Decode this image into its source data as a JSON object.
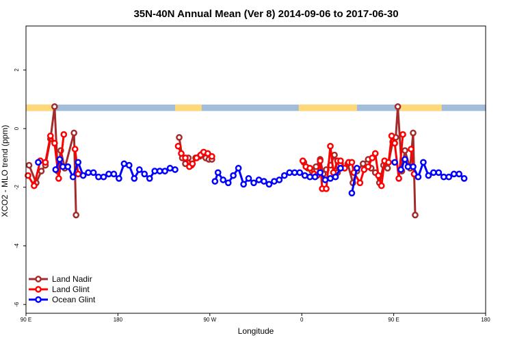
{
  "chart_data": {
    "type": "line",
    "title": "35N-40N Annual Mean (Ver 8)   2014-09-06 to 2017-06-30",
    "xlabel": "Longitude",
    "ylabel": "XCO2 - MLO trend (ppm)",
    "x_unit": "degrees longitude, continuous from 90 E eastward (90 E = 90, 180 = 180, 90 W = 270, 0 = 360, 90 E = 450, 180 = 540)",
    "xlim": [
      90,
      540
    ],
    "ylim": [
      -6.3,
      3.5
    ],
    "xticks": [
      {
        "value": 90,
        "label": "90 E"
      },
      {
        "value": 180,
        "label": "180"
      },
      {
        "value": 270,
        "label": "90 W"
      },
      {
        "value": 360,
        "label": "0"
      },
      {
        "value": 450,
        "label": "90 E"
      },
      {
        "value": 540,
        "label": "180"
      }
    ],
    "yticks": [
      {
        "value": -6,
        "label": "-6"
      },
      {
        "value": -4,
        "label": "-4"
      },
      {
        "value": -2,
        "label": "-2"
      },
      {
        "value": 0,
        "label": "0"
      },
      {
        "value": 2,
        "label": "2"
      }
    ],
    "grid": false,
    "legend_position": "bottom-left",
    "land_mask_band": {
      "y_range": [
        0.6,
        0.82
      ],
      "ocean_color": "#a3bcd9",
      "land_color": "#ffd879",
      "land_segments": [
        [
          90,
          118
        ],
        [
          236,
          262
        ],
        [
          357,
          414
        ],
        [
          456,
          497
        ]
      ]
    },
    "series": [
      {
        "name": "Land Nadir",
        "color": "#a52a2a",
        "points": [
          [
            93,
            -1.25
          ],
          [
            100,
            -1.85
          ],
          [
            105,
            -1.45
          ],
          [
            109,
            -1.25
          ],
          [
            114,
            -0.35
          ],
          [
            118,
            0.75
          ],
          [
            121,
            -1.45
          ],
          [
            124,
            -0.75
          ],
          [
            128,
            -1.35
          ],
          [
            137,
            -0.15
          ],
          [
            139,
            -2.95
          ],
          null,
          [
            240,
            -0.3
          ],
          [
            243,
            -1.0
          ],
          [
            246,
            -1.2
          ],
          [
            249,
            -1.0
          ],
          [
            252,
            -1.25
          ],
          [
            256,
            -1.0
          ],
          [
            260,
            -0.95
          ],
          [
            263,
            -0.85
          ],
          [
            266,
            -1.0
          ],
          [
            269,
            -1.05
          ],
          [
            272,
            -1.05
          ],
          null,
          [
            362,
            -1.15
          ],
          [
            366,
            -1.35
          ],
          [
            370,
            -1.45
          ],
          [
            374,
            -1.3
          ],
          [
            378,
            -1.05
          ],
          [
            381,
            -1.55
          ],
          [
            384,
            -1.4
          ],
          [
            388,
            -1.25
          ],
          [
            392,
            -0.9
          ],
          [
            395,
            -1.5
          ],
          [
            398,
            -1.2
          ],
          null,
          [
            405,
            -1.2
          ],
          [
            410,
            -1.85
          ],
          [
            414,
            -1.45
          ],
          [
            420,
            -1.2
          ],
          [
            425,
            -1.05
          ],
          [
            428,
            -1.35
          ],
          [
            432,
            -1.5
          ],
          [
            436,
            -1.85
          ],
          [
            440,
            -1.25
          ],
          [
            444,
            -1.35
          ],
          [
            449,
            -0.45
          ],
          [
            452,
            -0.3
          ],
          [
            454,
            0.75
          ],
          [
            458,
            -1.45
          ],
          [
            461,
            -0.75
          ],
          [
            466,
            -1.35
          ],
          [
            469,
            -0.15
          ],
          [
            471,
            -2.95
          ]
        ]
      },
      {
        "name": "Land Glint",
        "color": "#ff0000",
        "points": [
          [
            92,
            -1.6
          ],
          [
            98,
            -1.95
          ],
          [
            104,
            -1.1
          ],
          [
            109,
            -1.15
          ],
          [
            114,
            -0.25
          ],
          [
            118,
            -0.5
          ],
          [
            122,
            -1.7
          ],
          [
            127,
            -0.2
          ],
          null,
          [
            138,
            -0.7
          ],
          [
            141,
            -1.55
          ],
          null,
          [
            239,
            -0.6
          ],
          [
            242,
            -0.85
          ],
          [
            246,
            -1.0
          ],
          [
            250,
            -1.3
          ],
          [
            253,
            -1.2
          ],
          [
            257,
            -1.0
          ],
          [
            261,
            -0.9
          ],
          [
            264,
            -0.8
          ],
          [
            268,
            -0.85
          ],
          [
            272,
            -0.95
          ],
          null,
          [
            361,
            -1.1
          ],
          [
            364,
            -1.3
          ],
          [
            368,
            -1.35
          ],
          [
            372,
            -1.55
          ],
          [
            375,
            -1.6
          ],
          [
            378,
            -1.1
          ],
          [
            380,
            -2.05
          ],
          [
            384,
            -2.05
          ],
          [
            388,
            -0.6
          ],
          [
            391,
            -1.5
          ],
          [
            395,
            -1.1
          ],
          [
            398,
            -1.1
          ],
          [
            402,
            -1.35
          ],
          [
            406,
            -1.15
          ],
          [
            409,
            -1.15
          ],
          [
            411,
            -1.5
          ],
          [
            417,
            -1.85
          ],
          [
            421,
            -1.4
          ],
          [
            425,
            -1.3
          ],
          [
            429,
            -1.0
          ],
          [
            432,
            -0.85
          ],
          [
            435,
            -1.6
          ],
          [
            438,
            -1.95
          ],
          [
            441,
            -1.1
          ],
          [
            445,
            -1.15
          ],
          [
            448,
            -0.25
          ],
          [
            451,
            -0.5
          ],
          [
            455,
            -1.7
          ],
          [
            459,
            -0.2
          ],
          null,
          [
            467,
            -0.7
          ],
          [
            470,
            -1.55
          ]
        ]
      },
      {
        "name": "Ocean Glint",
        "color": "#0000ff",
        "points": [
          [
            102,
            -1.15
          ],
          null,
          [
            119,
            -1.4
          ],
          [
            123,
            -1.05
          ],
          [
            126,
            -1.3
          ],
          [
            131,
            -1.3
          ],
          [
            136,
            -1.65
          ],
          [
            141,
            -1.15
          ],
          [
            146,
            -1.6
          ],
          [
            151,
            -1.5
          ],
          [
            156,
            -1.5
          ],
          [
            161,
            -1.65
          ],
          [
            166,
            -1.65
          ],
          [
            171,
            -1.55
          ],
          [
            176,
            -1.55
          ],
          [
            181,
            -1.7
          ],
          [
            186,
            -1.2
          ],
          [
            191,
            -1.25
          ],
          [
            196,
            -1.7
          ],
          [
            201,
            -1.4
          ],
          [
            206,
            -1.55
          ],
          [
            211,
            -1.7
          ],
          [
            216,
            -1.45
          ],
          [
            221,
            -1.45
          ],
          [
            226,
            -1.45
          ],
          [
            231,
            -1.35
          ],
          [
            236,
            -1.4
          ],
          null,
          [
            275,
            -1.8
          ],
          [
            278,
            -1.5
          ],
          [
            283,
            -1.75
          ],
          [
            288,
            -1.85
          ],
          [
            293,
            -1.6
          ],
          [
            298,
            -1.35
          ],
          [
            303,
            -1.9
          ],
          [
            308,
            -1.7
          ],
          [
            313,
            -1.85
          ],
          [
            318,
            -1.75
          ],
          [
            323,
            -1.8
          ],
          [
            328,
            -1.9
          ],
          [
            333,
            -1.8
          ],
          [
            338,
            -1.75
          ],
          [
            343,
            -1.6
          ],
          [
            348,
            -1.5
          ],
          [
            353,
            -1.5
          ],
          [
            358,
            -1.5
          ],
          [
            363,
            -1.6
          ],
          [
            368,
            -1.65
          ],
          [
            373,
            -1.65
          ],
          [
            378,
            -1.5
          ],
          [
            383,
            -1.75
          ],
          [
            388,
            -1.7
          ],
          [
            393,
            -1.65
          ],
          [
            398,
            -1.35
          ],
          null,
          [
            409,
            -2.2
          ],
          [
            414,
            -1.35
          ],
          null,
          [
            451,
            -1.15
          ],
          null,
          [
            457,
            -1.4
          ],
          [
            461,
            -1.05
          ],
          [
            464,
            -1.3
          ],
          [
            469,
            -1.3
          ],
          [
            474,
            -1.65
          ],
          [
            479,
            -1.15
          ],
          [
            484,
            -1.6
          ],
          [
            489,
            -1.5
          ],
          [
            494,
            -1.5
          ],
          [
            499,
            -1.65
          ],
          [
            504,
            -1.65
          ],
          [
            509,
            -1.55
          ],
          [
            514,
            -1.55
          ],
          [
            519,
            -1.7
          ]
        ]
      }
    ]
  }
}
